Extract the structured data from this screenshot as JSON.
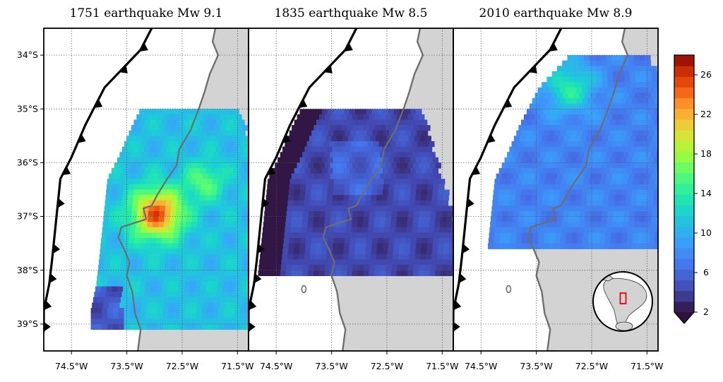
{
  "figure": {
    "panels": [
      {
        "title": "1751 earthquake Mw 9.1",
        "slip_region": {
          "lat_top": -35.0,
          "lat_bottom": -39.0
        }
      },
      {
        "title": "1835 earthquake Mw 8.5",
        "slip_region": {
          "lat_top": -35.0,
          "lat_bottom": -38.0
        }
      },
      {
        "title": "2010 earthquake Mw 8.9",
        "slip_region": {
          "lat_top": -34.0,
          "lat_bottom": -37.5
        }
      }
    ],
    "x_ticks": [
      "74.5°W",
      "73.5°W",
      "72.5°W",
      "71.5°W"
    ],
    "y_ticks": [
      "34°S",
      "35°S",
      "36°S",
      "37°S",
      "38°S",
      "39°S"
    ],
    "colorbar": {
      "ticks": [
        "2",
        "6",
        "10",
        "14",
        "18",
        "22",
        "26"
      ],
      "colormap": "turbo",
      "extend": "min"
    },
    "colors": {
      "land": "#d3d3d3",
      "coastline": "#6e6e6e",
      "trench": "#000000",
      "inset_box": "#e8141e"
    }
  },
  "chart_data": {
    "type": "heatmap",
    "colorbar_range": [
      2,
      28
    ],
    "x_range": [
      "75°W",
      "71.3°W"
    ],
    "y_range": [
      "33.5°S",
      "39.5°S"
    ],
    "grid": true,
    "series": [
      {
        "panel": "1751 earthquake Mw 9.1",
        "peak_value": 26,
        "peak_location": [
          "73.0°W",
          "37.0°S"
        ],
        "background_value": 12
      },
      {
        "panel": "1835 earthquake Mw 8.5",
        "peak_value": 6,
        "near_trench_value": 2,
        "background_value": 4
      },
      {
        "panel": "2010 earthquake Mw 8.9",
        "peak_value": 14,
        "peak_location": [
          "72.9°W",
          "34.5°S"
        ],
        "background_value": 8
      }
    ]
  }
}
